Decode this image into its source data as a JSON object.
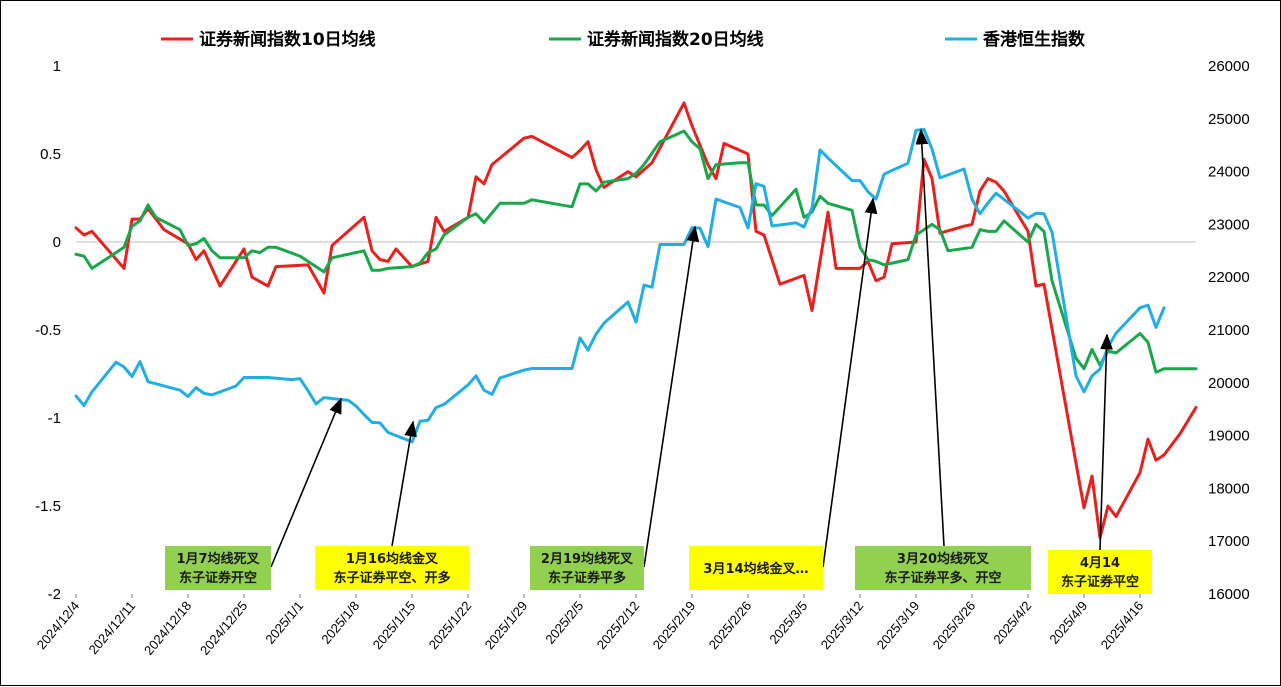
{
  "chart_data": {
    "type": "line",
    "legend": [
      {
        "name": "证券新闻指数10日均线",
        "color": "#e8211e"
      },
      {
        "name": "证券新闻指数20日均线",
        "color": "#1aa64b"
      },
      {
        "name": "香港恒生指数",
        "color": "#22aee2"
      }
    ],
    "y_left": {
      "ticks": [
        "1",
        "0.5",
        "0",
        "-0.5",
        "-1",
        "-1.5",
        "-2"
      ],
      "range": [
        -2,
        1
      ]
    },
    "y_right": {
      "ticks": [
        "26000",
        "25000",
        "24000",
        "23000",
        "22000",
        "21000",
        "20000",
        "19000",
        "18000",
        "17000",
        "16000"
      ],
      "range": [
        16000,
        26000
      ]
    },
    "x_ticks": [
      "2024/12/4",
      "2024/12/11",
      "2024/12/18",
      "2024/12/25",
      "2025/1/1",
      "2025/1/8",
      "2025/1/15",
      "2025/1/22",
      "2025/1/29",
      "2025/2/5",
      "2025/2/12",
      "2025/2/19",
      "2025/2/26",
      "2025/3/5",
      "2025/3/12",
      "2025/3/19",
      "2025/3/26",
      "2025/4/2",
      "2025/4/9",
      "2025/4/16"
    ],
    "x_start": "2024/12/4",
    "x_end": "2025/4/21",
    "series": [
      {
        "name": "证券新闻指数10日均线",
        "axis": "left",
        "color": "#e8211e",
        "points": [
          [
            0,
            0.08
          ],
          [
            1,
            0.04
          ],
          [
            2,
            0.06
          ],
          [
            6,
            -0.15
          ],
          [
            7,
            0.13
          ],
          [
            8,
            0.13
          ],
          [
            9,
            0.19
          ],
          [
            11,
            0.07
          ],
          [
            14,
            -0.01
          ],
          [
            15,
            -0.1
          ],
          [
            16,
            -0.05
          ],
          [
            18,
            -0.25
          ],
          [
            21,
            -0.04
          ],
          [
            22,
            -0.2
          ],
          [
            24,
            -0.25
          ],
          [
            25,
            -0.14
          ],
          [
            29,
            -0.13
          ],
          [
            31,
            -0.29
          ],
          [
            32,
            -0.02
          ],
          [
            36,
            0.14
          ],
          [
            37,
            -0.05
          ],
          [
            38,
            -0.1
          ],
          [
            39,
            -0.11
          ],
          [
            40,
            -0.04
          ],
          [
            42,
            -0.14
          ],
          [
            44,
            -0.11
          ],
          [
            45,
            0.14
          ],
          [
            46,
            0.06
          ],
          [
            49,
            0.14
          ],
          [
            50,
            0.37
          ],
          [
            51,
            0.33
          ],
          [
            52,
            0.44
          ],
          [
            56,
            0.59
          ],
          [
            57,
            0.6
          ],
          [
            62,
            0.48
          ],
          [
            63,
            0.52
          ],
          [
            64,
            0.57
          ],
          [
            65,
            0.41
          ],
          [
            66,
            0.31
          ],
          [
            69,
            0.4
          ],
          [
            70,
            0.37
          ],
          [
            71,
            0.41
          ],
          [
            72,
            0.45
          ],
          [
            76,
            0.79
          ],
          [
            77,
            0.66
          ],
          [
            79,
            0.44
          ],
          [
            80,
            0.36
          ],
          [
            81,
            0.56
          ],
          [
            84,
            0.5
          ],
          [
            85,
            0.06
          ],
          [
            86,
            0.04
          ],
          [
            88,
            -0.24
          ],
          [
            91,
            -0.19
          ],
          [
            92,
            -0.39
          ],
          [
            94,
            0.17
          ],
          [
            95,
            -0.15
          ],
          [
            98,
            -0.15
          ],
          [
            99,
            -0.11
          ],
          [
            100,
            -0.22
          ],
          [
            101,
            -0.2
          ],
          [
            102,
            -0.01
          ],
          [
            105,
            0.0
          ],
          [
            106,
            0.47
          ],
          [
            107,
            0.36
          ],
          [
            108,
            0.05
          ],
          [
            111,
            0.09
          ],
          [
            112,
            0.1
          ],
          [
            113,
            0.29
          ],
          [
            114,
            0.36
          ],
          [
            115,
            0.34
          ],
          [
            116,
            0.29
          ],
          [
            119,
            0.06
          ],
          [
            120,
            -0.25
          ],
          [
            121,
            -0.24
          ],
          [
            126,
            -1.51
          ],
          [
            127,
            -1.33
          ],
          [
            128,
            -1.68
          ],
          [
            129,
            -1.5
          ],
          [
            130,
            -1.56
          ],
          [
            133,
            -1.31
          ],
          [
            134,
            -1.12
          ],
          [
            135,
            -1.24
          ],
          [
            136,
            -1.21
          ],
          [
            138,
            -1.09
          ],
          [
            140,
            -0.94
          ]
        ]
      },
      {
        "name": "证券新闻指数20日均线",
        "axis": "left",
        "color": "#1aa64b",
        "points": [
          [
            0,
            -0.07
          ],
          [
            1,
            -0.08
          ],
          [
            2,
            -0.15
          ],
          [
            5,
            -0.06
          ],
          [
            6,
            -0.03
          ],
          [
            7,
            0.09
          ],
          [
            8,
            0.12
          ],
          [
            9,
            0.21
          ],
          [
            10,
            0.14
          ],
          [
            13,
            0.07
          ],
          [
            14,
            -0.02
          ],
          [
            15,
            -0.01
          ],
          [
            16,
            0.02
          ],
          [
            17,
            -0.05
          ],
          [
            18,
            -0.09
          ],
          [
            21,
            -0.09
          ],
          [
            22,
            -0.05
          ],
          [
            23,
            -0.06
          ],
          [
            24,
            -0.03
          ],
          [
            25,
            -0.03
          ],
          [
            28,
            -0.08
          ],
          [
            31,
            -0.17
          ],
          [
            32,
            -0.09
          ],
          [
            36,
            -0.05
          ],
          [
            37,
            -0.16
          ],
          [
            38,
            -0.16
          ],
          [
            39,
            -0.15
          ],
          [
            42,
            -0.14
          ],
          [
            43,
            -0.12
          ],
          [
            44,
            -0.06
          ],
          [
            45,
            -0.04
          ],
          [
            46,
            0.04
          ],
          [
            49,
            0.14
          ],
          [
            50,
            0.16
          ],
          [
            51,
            0.11
          ],
          [
            53,
            0.22
          ],
          [
            56,
            0.22
          ],
          [
            57,
            0.24
          ],
          [
            62,
            0.2
          ],
          [
            63,
            0.33
          ],
          [
            64,
            0.33
          ],
          [
            65,
            0.29
          ],
          [
            66,
            0.34
          ],
          [
            69,
            0.36
          ],
          [
            70,
            0.39
          ],
          [
            71,
            0.44
          ],
          [
            73,
            0.57
          ],
          [
            76,
            0.63
          ],
          [
            77,
            0.57
          ],
          [
            78,
            0.53
          ],
          [
            79,
            0.36
          ],
          [
            80,
            0.44
          ],
          [
            83,
            0.45
          ],
          [
            84,
            0.45
          ],
          [
            85,
            0.21
          ],
          [
            86,
            0.21
          ],
          [
            87,
            0.15
          ],
          [
            90,
            0.3
          ],
          [
            91,
            0.14
          ],
          [
            92,
            0.17
          ],
          [
            93,
            0.26
          ],
          [
            94,
            0.22
          ],
          [
            97,
            0.18
          ],
          [
            98,
            -0.03
          ],
          [
            99,
            -0.1
          ],
          [
            100,
            -0.11
          ],
          [
            101,
            -0.13
          ],
          [
            104,
            -0.1
          ],
          [
            105,
            0.04
          ],
          [
            107,
            0.1
          ],
          [
            108,
            0.07
          ],
          [
            109,
            -0.05
          ],
          [
            112,
            -0.03
          ],
          [
            113,
            0.07
          ],
          [
            114,
            0.06
          ],
          [
            115,
            0.06
          ],
          [
            116,
            0.12
          ],
          [
            119,
            0.0
          ],
          [
            120,
            0.1
          ],
          [
            121,
            0.06
          ],
          [
            122,
            -0.22
          ],
          [
            125,
            -0.66
          ],
          [
            126,
            -0.72
          ],
          [
            127,
            -0.61
          ],
          [
            128,
            -0.7
          ],
          [
            129,
            -0.62
          ],
          [
            130,
            -0.63
          ],
          [
            133,
            -0.52
          ],
          [
            134,
            -0.57
          ],
          [
            135,
            -0.74
          ],
          [
            136,
            -0.72
          ],
          [
            140,
            -0.72
          ]
        ]
      },
      {
        "name": "香港恒生指数",
        "axis": "right",
        "color": "#22aee2",
        "points": [
          [
            0,
            19750
          ],
          [
            1,
            19570
          ],
          [
            2,
            19830
          ],
          [
            5,
            20390
          ],
          [
            6,
            20300
          ],
          [
            7,
            20120
          ],
          [
            8,
            20400
          ],
          [
            9,
            20020
          ],
          [
            13,
            19860
          ],
          [
            14,
            19740
          ],
          [
            15,
            19910
          ],
          [
            16,
            19800
          ],
          [
            17,
            19770
          ],
          [
            20,
            19940
          ],
          [
            21,
            20100
          ],
          [
            24,
            20100
          ],
          [
            27,
            20060
          ],
          [
            28,
            20080
          ],
          [
            29,
            19850
          ],
          [
            30,
            19600
          ],
          [
            31,
            19720
          ],
          [
            34,
            19670
          ],
          [
            35,
            19560
          ],
          [
            36,
            19400
          ],
          [
            37,
            19250
          ],
          [
            38,
            19240
          ],
          [
            39,
            19060
          ],
          [
            42,
            18880
          ],
          [
            43,
            19270
          ],
          [
            44,
            19290
          ],
          [
            45,
            19530
          ],
          [
            46,
            19590
          ],
          [
            49,
            19960
          ],
          [
            50,
            20130
          ],
          [
            51,
            19860
          ],
          [
            52,
            19780
          ],
          [
            53,
            20090
          ],
          [
            56,
            20240
          ],
          [
            57,
            20270
          ],
          [
            62,
            20270
          ],
          [
            63,
            20850
          ],
          [
            64,
            20620
          ],
          [
            65,
            20920
          ],
          [
            66,
            21130
          ],
          [
            69,
            21530
          ],
          [
            70,
            21150
          ],
          [
            71,
            21850
          ],
          [
            72,
            21810
          ],
          [
            73,
            22620
          ],
          [
            76,
            22620
          ],
          [
            77,
            22940
          ],
          [
            78,
            22930
          ],
          [
            79,
            22580
          ],
          [
            80,
            23480
          ],
          [
            83,
            23320
          ],
          [
            84,
            22930
          ],
          [
            85,
            23770
          ],
          [
            86,
            23720
          ],
          [
            87,
            22970
          ],
          [
            90,
            23030
          ],
          [
            91,
            22950
          ],
          [
            92,
            23310
          ],
          [
            93,
            24410
          ],
          [
            94,
            24260
          ],
          [
            97,
            23830
          ],
          [
            98,
            23830
          ],
          [
            99,
            23620
          ],
          [
            100,
            23480
          ],
          [
            101,
            23950
          ],
          [
            104,
            24160
          ],
          [
            105,
            24780
          ],
          [
            106,
            24800
          ],
          [
            107,
            24430
          ],
          [
            108,
            23880
          ],
          [
            111,
            24050
          ],
          [
            112,
            23480
          ],
          [
            113,
            23200
          ],
          [
            114,
            23410
          ],
          [
            115,
            23590
          ],
          [
            118,
            23240
          ],
          [
            119,
            23120
          ],
          [
            120,
            23210
          ],
          [
            121,
            23200
          ],
          [
            122,
            22850
          ],
          [
            125,
            20130
          ],
          [
            126,
            19830
          ],
          [
            127,
            20130
          ],
          [
            128,
            20260
          ],
          [
            129,
            20680
          ],
          [
            130,
            20940
          ],
          [
            133,
            21420
          ],
          [
            134,
            21470
          ],
          [
            135,
            21050
          ],
          [
            136,
            21420
          ]
        ]
      }
    ],
    "annotations": [
      {
        "lines": [
          "1月7均线死叉",
          "东子证券开空"
        ],
        "bg": "#92d050"
      },
      {
        "lines": [
          "1月16均线金叉",
          "东子证券平空、开多"
        ],
        "bg": "#ffff00"
      },
      {
        "lines": [
          "2月19均线死叉",
          "东子证券平多"
        ],
        "bg": "#92d050"
      },
      {
        "lines": [
          "3月14均线金叉…"
        ],
        "bg": "#ffff00"
      },
      {
        "lines": [
          "3月20均线死叉",
          "东子证券平多、开空"
        ],
        "bg": "#92d050"
      },
      {
        "lines": [
          "4月14",
          "东子证券平空"
        ],
        "bg": "#ffff00"
      }
    ]
  }
}
